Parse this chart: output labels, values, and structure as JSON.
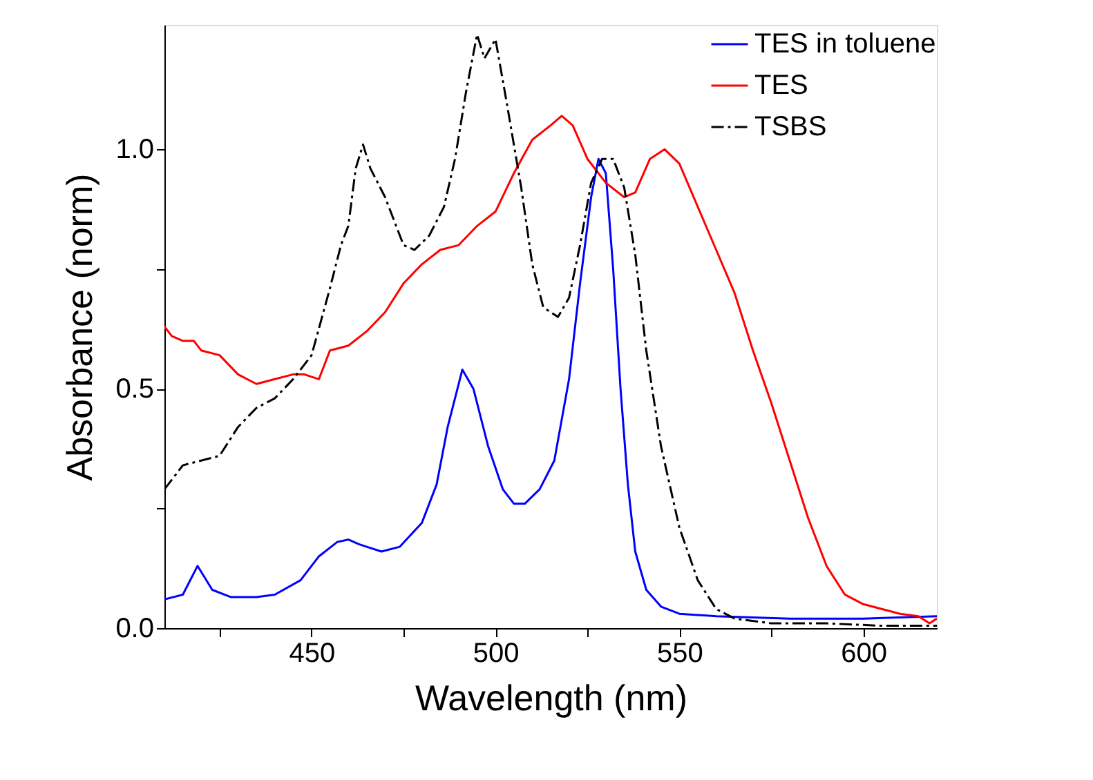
{
  "chart_data": {
    "type": "line",
    "xlabel": "Wavelength (nm)",
    "ylabel": "Absorbance (norm)",
    "xlim": [
      410,
      620
    ],
    "ylim": [
      0,
      1.26
    ],
    "xticks": [
      {
        "value": 425,
        "label": null
      },
      450,
      {
        "value": 475,
        "label": null
      },
      500,
      {
        "value": 525,
        "label": null
      },
      550,
      {
        "value": 575,
        "label": null
      },
      600
    ],
    "yticks": [
      {
        "value": 0,
        "label": "0.0"
      },
      {
        "value": 0.25,
        "label": null
      },
      {
        "value": 0.5,
        "label": "0.5"
      },
      {
        "value": 0.75,
        "label": null
      },
      {
        "value": 1.0,
        "label": "1.0"
      }
    ],
    "grid": false,
    "legend": "top right",
    "marker": "none",
    "series": [
      {
        "name": "TES in toluene",
        "color": "#0000ff",
        "line_style": "solid",
        "x": [
          410,
          415,
          419,
          423,
          428,
          435,
          440,
          447,
          452,
          457,
          460,
          463,
          465,
          469,
          474,
          480,
          484,
          487,
          491,
          494,
          498,
          502,
          505,
          508,
          512,
          516,
          520,
          523,
          526,
          528,
          530,
          532,
          534,
          536,
          538,
          541,
          545,
          550,
          560,
          580,
          600,
          620
        ],
        "values": [
          0.06,
          0.07,
          0.13,
          0.08,
          0.065,
          0.065,
          0.07,
          0.1,
          0.15,
          0.18,
          0.185,
          0.175,
          0.17,
          0.16,
          0.17,
          0.22,
          0.3,
          0.42,
          0.54,
          0.5,
          0.38,
          0.29,
          0.26,
          0.26,
          0.29,
          0.35,
          0.52,
          0.72,
          0.9,
          0.98,
          0.95,
          0.75,
          0.5,
          0.3,
          0.16,
          0.08,
          0.045,
          0.03,
          0.025,
          0.02,
          0.02,
          0.025
        ]
      },
      {
        "name": "TES",
        "color": "#ff0000",
        "line_style": "solid",
        "x": [
          410,
          412,
          415,
          418,
          420,
          425,
          430,
          435,
          440,
          445,
          448,
          452,
          455,
          460,
          465,
          470,
          475,
          480,
          485,
          490,
          495,
          500,
          505,
          510,
          515,
          518,
          521,
          525,
          530,
          535,
          538,
          542,
          546,
          550,
          555,
          560,
          565,
          570,
          575,
          580,
          585,
          590,
          595,
          600,
          605,
          610,
          615,
          618,
          620
        ],
        "values": [
          0.63,
          0.61,
          0.6,
          0.6,
          0.58,
          0.57,
          0.53,
          0.51,
          0.52,
          0.53,
          0.53,
          0.52,
          0.58,
          0.59,
          0.62,
          0.66,
          0.72,
          0.76,
          0.79,
          0.8,
          0.84,
          0.87,
          0.95,
          1.02,
          1.05,
          1.07,
          1.05,
          0.98,
          0.93,
          0.9,
          0.91,
          0.98,
          1.0,
          0.97,
          0.88,
          0.79,
          0.7,
          0.58,
          0.47,
          0.35,
          0.23,
          0.13,
          0.07,
          0.05,
          0.04,
          0.03,
          0.025,
          0.01,
          0.02
        ]
      },
      {
        "name": "TSBS",
        "color": "#000000",
        "line_style": "dashdot",
        "x": [
          410,
          415,
          420,
          425,
          430,
          435,
          440,
          445,
          450,
          455,
          458,
          460,
          462,
          464,
          466,
          470,
          473,
          475,
          478,
          482,
          486,
          489,
          492,
          495,
          497,
          500,
          503,
          507,
          510,
          513,
          517,
          520,
          523,
          526,
          529,
          532,
          535,
          538,
          541,
          545,
          550,
          555,
          560,
          565,
          575,
          590,
          605,
          620
        ],
        "values": [
          0.29,
          0.34,
          0.35,
          0.36,
          0.42,
          0.46,
          0.48,
          0.52,
          0.57,
          0.71,
          0.8,
          0.84,
          0.96,
          1.01,
          0.96,
          0.9,
          0.84,
          0.8,
          0.79,
          0.82,
          0.88,
          0.98,
          1.12,
          1.24,
          1.19,
          1.23,
          1.1,
          0.92,
          0.76,
          0.67,
          0.65,
          0.69,
          0.8,
          0.93,
          0.98,
          0.98,
          0.92,
          0.78,
          0.58,
          0.38,
          0.21,
          0.1,
          0.04,
          0.02,
          0.01,
          0.01,
          0.005,
          0.005
        ]
      }
    ]
  }
}
